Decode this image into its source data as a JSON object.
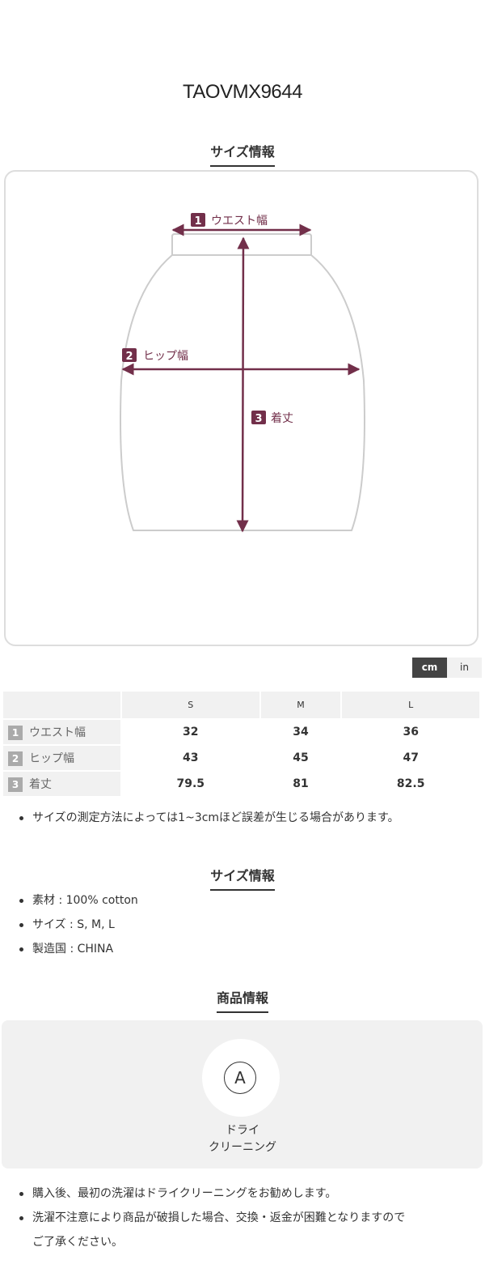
{
  "product_code": "TAOVMX9644",
  "size_section": {
    "heading": "サイズ情報",
    "diagram": {
      "labels": [
        {
          "num": "1",
          "text": "ウエスト幅"
        },
        {
          "num": "2",
          "text": "ヒップ幅"
        },
        {
          "num": "3",
          "text": "着丈"
        }
      ],
      "accent_color": "#722f4a"
    },
    "unit_toggle": {
      "options": [
        "cm",
        "in"
      ],
      "selected": "cm"
    },
    "table": {
      "columns": [
        "S",
        "M",
        "L"
      ],
      "rows": [
        {
          "num": "1",
          "label": "ウエスト幅",
          "values": [
            "32",
            "34",
            "36"
          ]
        },
        {
          "num": "2",
          "label": "ヒップ幅",
          "values": [
            "43",
            "45",
            "47"
          ]
        },
        {
          "num": "3",
          "label": "着丈",
          "values": [
            "79.5",
            "81",
            "82.5"
          ]
        }
      ]
    },
    "note": "サイズの測定方法によっては1~3cmほど誤差が生じる場合があります。"
  },
  "info_section": {
    "heading": "サイズ情報",
    "items": [
      "素材 : 100% cotton",
      "サイズ : S, M, L",
      "製造国 : CHINA"
    ]
  },
  "product_section": {
    "heading": "商品情報",
    "care": {
      "icon": "A",
      "label_line1": "ドライ",
      "label_line2": "クリーニング"
    },
    "notes": [
      "購入後、最初の洗濯はドライクリーニングをお勧めします。",
      "洗濯不注意により商品が破損した場合、交換・返金が困難となりますので",
      "ご了承ください。"
    ]
  }
}
